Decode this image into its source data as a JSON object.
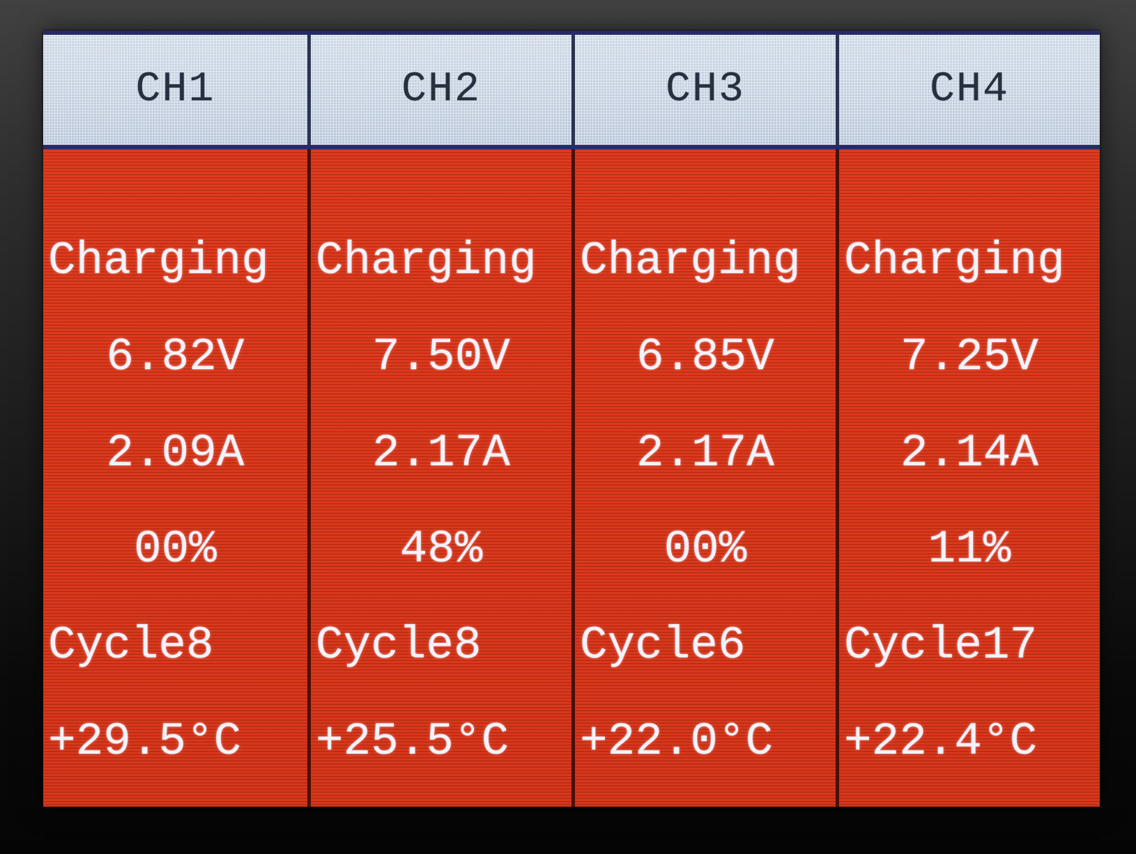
{
  "device": {
    "kind": "battery-charger-multichannel-display",
    "status_screen": true
  },
  "channels": [
    {
      "id": "CH1",
      "status": "Charging",
      "voltage": "6.82V",
      "current": "2.09A",
      "percent": "00%",
      "cycle": "Cycle8",
      "temperature": "+29.5°C"
    },
    {
      "id": "CH2",
      "status": "Charging",
      "voltage": "7.50V",
      "current": "2.17A",
      "percent": "48%",
      "cycle": "Cycle8",
      "temperature": "+25.5°C"
    },
    {
      "id": "CH3",
      "status": "Charging",
      "voltage": "6.85V",
      "current": "2.17A",
      "percent": "00%",
      "cycle": "Cycle6",
      "temperature": "+22.0°C"
    },
    {
      "id": "CH4",
      "status": "Charging",
      "voltage": "7.25V",
      "current": "2.14A",
      "percent": "11%",
      "cycle": "Cycle17",
      "temperature": "+22.4°C"
    }
  ],
  "colors": {
    "body_bg": "#dc3a1c",
    "header_bg": "#c2cedf",
    "header_text": "#26303e",
    "body_text": "#f4f2fa",
    "header_divider": "#2a3350",
    "body_divider": "#4a0f06",
    "separator_line": "#272a68",
    "photo_background": "#1a1a1a"
  }
}
